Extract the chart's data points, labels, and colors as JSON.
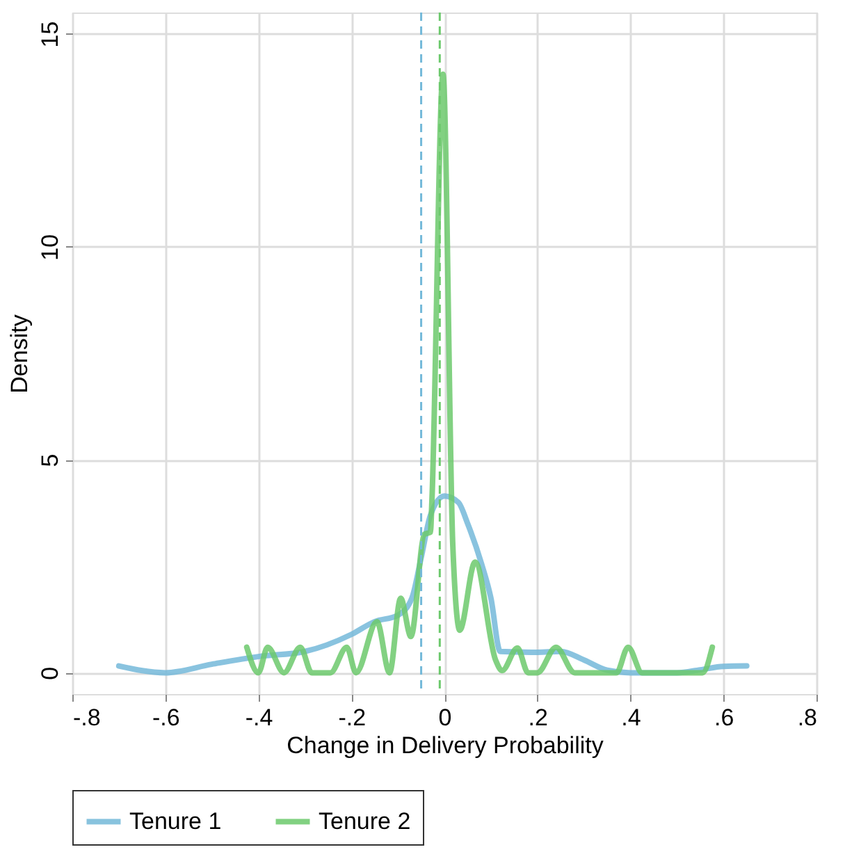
{
  "chart_data": {
    "type": "line",
    "xlabel": "Change in Delivery Probability",
    "ylabel": "Density",
    "xlim": [
      -0.8,
      0.8
    ],
    "ylim": [
      -0.5,
      15.5
    ],
    "xticks": [
      {
        "value": -0.8,
        "label": "-.8"
      },
      {
        "value": -0.6,
        "label": "-.6"
      },
      {
        "value": -0.4,
        "label": "-.4"
      },
      {
        "value": -0.2,
        "label": "-.2"
      },
      0,
      {
        "value": 0.2,
        "label": ".2"
      },
      {
        "value": 0.4,
        "label": ".4"
      },
      {
        "value": 0.6,
        "label": ".6"
      },
      {
        "value": 0.8,
        "label": ".8"
      }
    ],
    "yticks": [
      0,
      5,
      10,
      15
    ],
    "grid": true,
    "legend": "bottom",
    "line_style": "solid",
    "marker": "none",
    "series": [
      {
        "name": "Tenure 1",
        "color": "#74b9d9",
        "x": [
          -0.7,
          -0.6,
          -0.5,
          -0.4,
          -0.3,
          -0.2,
          -0.15,
          -0.1,
          -0.07,
          -0.05,
          -0.03,
          0,
          0.03,
          0.05,
          0.08,
          0.1,
          0.12,
          0.2,
          0.25,
          0.3,
          0.35,
          0.4,
          0.5,
          0.55,
          0.6,
          0.65
        ],
        "values": [
          0.16,
          0,
          0.2,
          0.38,
          0.5,
          0.9,
          1.2,
          1.35,
          1.75,
          2.7,
          3.7,
          4.15,
          4.0,
          3.5,
          2.55,
          1.75,
          0.5,
          0.48,
          0.5,
          0.3,
          0.06,
          0,
          0,
          0.07,
          0.15,
          0.16
        ]
      },
      {
        "name": "Tenure 2",
        "color": "#6cc96c",
        "x": [
          -0.425,
          -0.4,
          -0.38,
          -0.345,
          -0.31,
          -0.285,
          -0.245,
          -0.21,
          -0.19,
          -0.145,
          -0.118,
          -0.094,
          -0.072,
          -0.043,
          -0.03,
          -0.027,
          -0.003,
          0.018,
          0.033,
          0.066,
          0.11,
          0.124,
          0.157,
          0.18,
          0.2,
          0.24,
          0.28,
          0.37,
          0.395,
          0.425,
          0.555,
          0.576
        ],
        "values": [
          0.6,
          0,
          0.6,
          0,
          0.6,
          0,
          0,
          0.6,
          0,
          1.2,
          0,
          1.75,
          0.85,
          3.25,
          3.3,
          4.0,
          14.05,
          3.0,
          1.0,
          2.6,
          0.3,
          0.05,
          0.58,
          0,
          0,
          0.6,
          0,
          0,
          0.6,
          0,
          0,
          0.6
        ]
      }
    ],
    "ref_lines": [
      {
        "axis": "x",
        "value": -0.05,
        "color": "#74b9d9",
        "line_style": "dashed"
      },
      {
        "axis": "x",
        "value": -0.01,
        "color": "#6cc96c",
        "line_style": "dashed"
      }
    ]
  }
}
